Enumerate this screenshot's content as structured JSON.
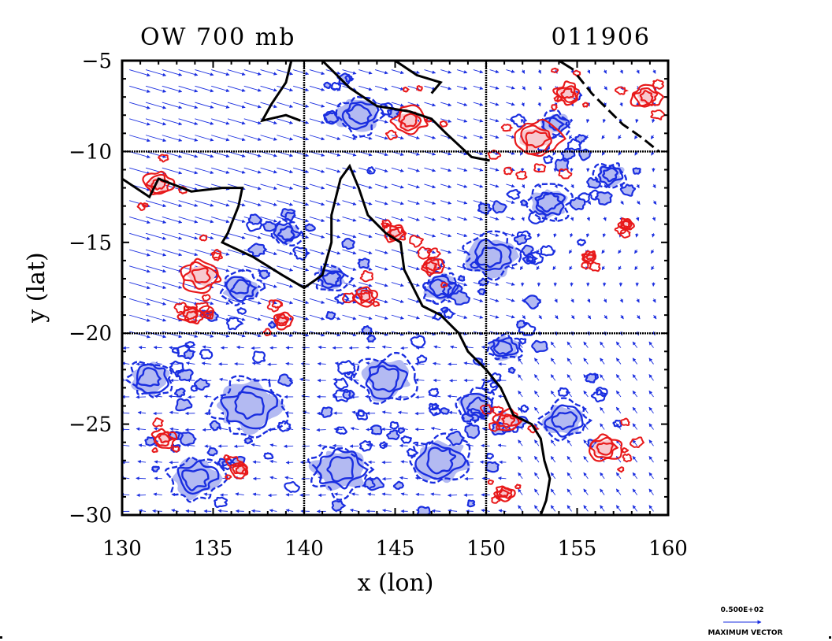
{
  "chart_data": {
    "type": "contour",
    "title": "OW 700 mb",
    "date_label": "011906",
    "xlabel": "x (lon)",
    "ylabel": "y (lat)",
    "xlim": [
      130,
      160
    ],
    "ylim": [
      -30,
      -5
    ],
    "x_ticks": [
      130,
      135,
      140,
      145,
      150,
      155,
      160
    ],
    "y_ticks": [
      -5,
      -10,
      -15,
      -20,
      -25,
      -30
    ],
    "x_tick_labels": [
      "130",
      "135",
      "140",
      "145",
      "150",
      "155",
      "160"
    ],
    "y_tick_labels": [
      "−5",
      "−10",
      "−15",
      "−20",
      "−25",
      "−30"
    ],
    "gridlines_x": [
      140,
      150
    ],
    "gridlines_y": [
      -10,
      -20
    ],
    "grid": "dotted",
    "colors": {
      "positive_contour": "#e8191a",
      "positive_fill": "#f7c9cf",
      "negative_contour": "#1a2ee0",
      "negative_fill": "#b3baf2",
      "vector": "#1a2ee0",
      "coastline": "#000000"
    },
    "vector_legend": {
      "value": "0.500E+02",
      "label": "MAXIMUM VECTOR"
    },
    "features": {
      "positive_blobs": [
        {
          "lon": 134.3,
          "lat": -16.8,
          "r": 1.1
        },
        {
          "lon": 145.8,
          "lat": -8.3,
          "r": 0.9
        },
        {
          "lon": 154.5,
          "lat": -6.8,
          "r": 0.7
        },
        {
          "lon": 152.8,
          "lat": -9.3,
          "r": 1.3
        },
        {
          "lon": 156.5,
          "lat": -26.3,
          "r": 0.9
        },
        {
          "lon": 145.0,
          "lat": -14.5,
          "r": 0.6
        },
        {
          "lon": 133.8,
          "lat": -19.0,
          "r": 0.6
        },
        {
          "lon": 132.0,
          "lat": -11.8,
          "r": 0.8
        },
        {
          "lon": 158.8,
          "lat": -7.0,
          "r": 0.8
        },
        {
          "lon": 143.4,
          "lat": -18.0,
          "r": 0.6
        },
        {
          "lon": 138.8,
          "lat": -19.3,
          "r": 0.5
        },
        {
          "lon": 147.0,
          "lat": -16.3,
          "r": 0.6
        },
        {
          "lon": 155.7,
          "lat": -15.8,
          "r": 0.4
        },
        {
          "lon": 132.3,
          "lat": -25.8,
          "r": 0.6
        },
        {
          "lon": 151.2,
          "lat": -24.8,
          "r": 0.7
        },
        {
          "lon": 136.5,
          "lat": -27.5,
          "r": 0.5
        },
        {
          "lon": 151.0,
          "lat": -28.8,
          "r": 0.5
        },
        {
          "lon": 157.7,
          "lat": -14.0,
          "r": 0.4
        }
      ],
      "negative_blobs": [
        {
          "lon": 150.3,
          "lat": -15.8,
          "r": 1.4
        },
        {
          "lon": 153.5,
          "lat": -12.8,
          "r": 1.1
        },
        {
          "lon": 147.5,
          "lat": -17.5,
          "r": 1.0
        },
        {
          "lon": 154.3,
          "lat": -24.8,
          "r": 1.2
        },
        {
          "lon": 156.8,
          "lat": -11.3,
          "r": 0.8
        },
        {
          "lon": 144.5,
          "lat": -22.5,
          "r": 1.5
        },
        {
          "lon": 137.0,
          "lat": -24.0,
          "r": 1.8
        },
        {
          "lon": 142.0,
          "lat": -27.5,
          "r": 1.6
        },
        {
          "lon": 147.5,
          "lat": -27.0,
          "r": 1.6
        },
        {
          "lon": 134.0,
          "lat": -28.0,
          "r": 1.4
        },
        {
          "lon": 136.5,
          "lat": -17.5,
          "r": 1.0
        },
        {
          "lon": 141.5,
          "lat": -17.0,
          "r": 0.9
        },
        {
          "lon": 143.0,
          "lat": -8.0,
          "r": 1.2
        },
        {
          "lon": 139.0,
          "lat": -14.5,
          "r": 0.8
        },
        {
          "lon": 151.0,
          "lat": -20.8,
          "r": 0.9
        },
        {
          "lon": 153.8,
          "lat": -8.5,
          "r": 0.8
        },
        {
          "lon": 149.5,
          "lat": -24.0,
          "r": 1.0
        },
        {
          "lon": 131.5,
          "lat": -22.5,
          "r": 1.2
        }
      ],
      "coastline_segments": [
        [
          [
            139.3,
            -5.0
          ],
          [
            139.0,
            -6.2
          ],
          [
            138.2,
            -7.4
          ],
          [
            137.7,
            -8.3
          ],
          [
            139.0,
            -8.0
          ],
          [
            139.8,
            -8.3
          ]
        ],
        [
          [
            141.0,
            -5.0
          ],
          [
            142.5,
            -6.5
          ],
          [
            144.0,
            -7.5
          ],
          [
            145.8,
            -7.8
          ],
          [
            147.0,
            -8.2
          ],
          [
            147.8,
            -9.0
          ],
          [
            149.2,
            -10.3
          ],
          [
            150.2,
            -10.5
          ]
        ],
        [
          [
            130.0,
            -11.5
          ],
          [
            131.5,
            -12.5
          ],
          [
            132.0,
            -11.5
          ],
          [
            133.8,
            -12.2
          ],
          [
            135.5,
            -12.0
          ],
          [
            136.6,
            -12.0
          ],
          [
            136.4,
            -13.0
          ],
          [
            135.8,
            -14.5
          ],
          [
            135.5,
            -15.0
          ],
          [
            137.2,
            -15.8
          ],
          [
            138.8,
            -16.8
          ],
          [
            140.0,
            -17.5
          ],
          [
            141.0,
            -16.8
          ],
          [
            141.5,
            -15.0
          ],
          [
            141.5,
            -13.5
          ],
          [
            142.0,
            -11.5
          ],
          [
            142.5,
            -10.8
          ],
          [
            143.0,
            -12.0
          ],
          [
            143.5,
            -13.5
          ],
          [
            144.5,
            -14.5
          ],
          [
            145.3,
            -15.0
          ],
          [
            145.5,
            -16.5
          ],
          [
            146.0,
            -17.5
          ],
          [
            146.5,
            -18.5
          ],
          [
            147.5,
            -19.0
          ],
          [
            148.5,
            -20.0
          ],
          [
            149.0,
            -21.0
          ],
          [
            150.0,
            -22.0
          ],
          [
            150.8,
            -23.0
          ],
          [
            151.5,
            -24.5
          ],
          [
            152.5,
            -25.0
          ],
          [
            153.0,
            -25.8
          ],
          [
            153.2,
            -27.0
          ],
          [
            153.5,
            -28.0
          ],
          [
            153.3,
            -29.2
          ],
          [
            153.0,
            -30.0
          ]
        ],
        [
          [
            145.0,
            -5.0
          ],
          [
            146.2,
            -5.8
          ],
          [
            147.5,
            -6.2
          ],
          [
            147.0,
            -6.8
          ]
        ],
        [
          [
            155.0,
            -5.8
          ],
          [
            155.8,
            -6.8
          ],
          [
            156.5,
            -7.5
          ],
          [
            157.5,
            -8.5
          ],
          [
            158.5,
            -9.2
          ],
          [
            159.5,
            -10.0
          ]
        ],
        [
          [
            154.0,
            -5.0
          ],
          [
            154.8,
            -5.5
          ]
        ]
      ]
    }
  }
}
